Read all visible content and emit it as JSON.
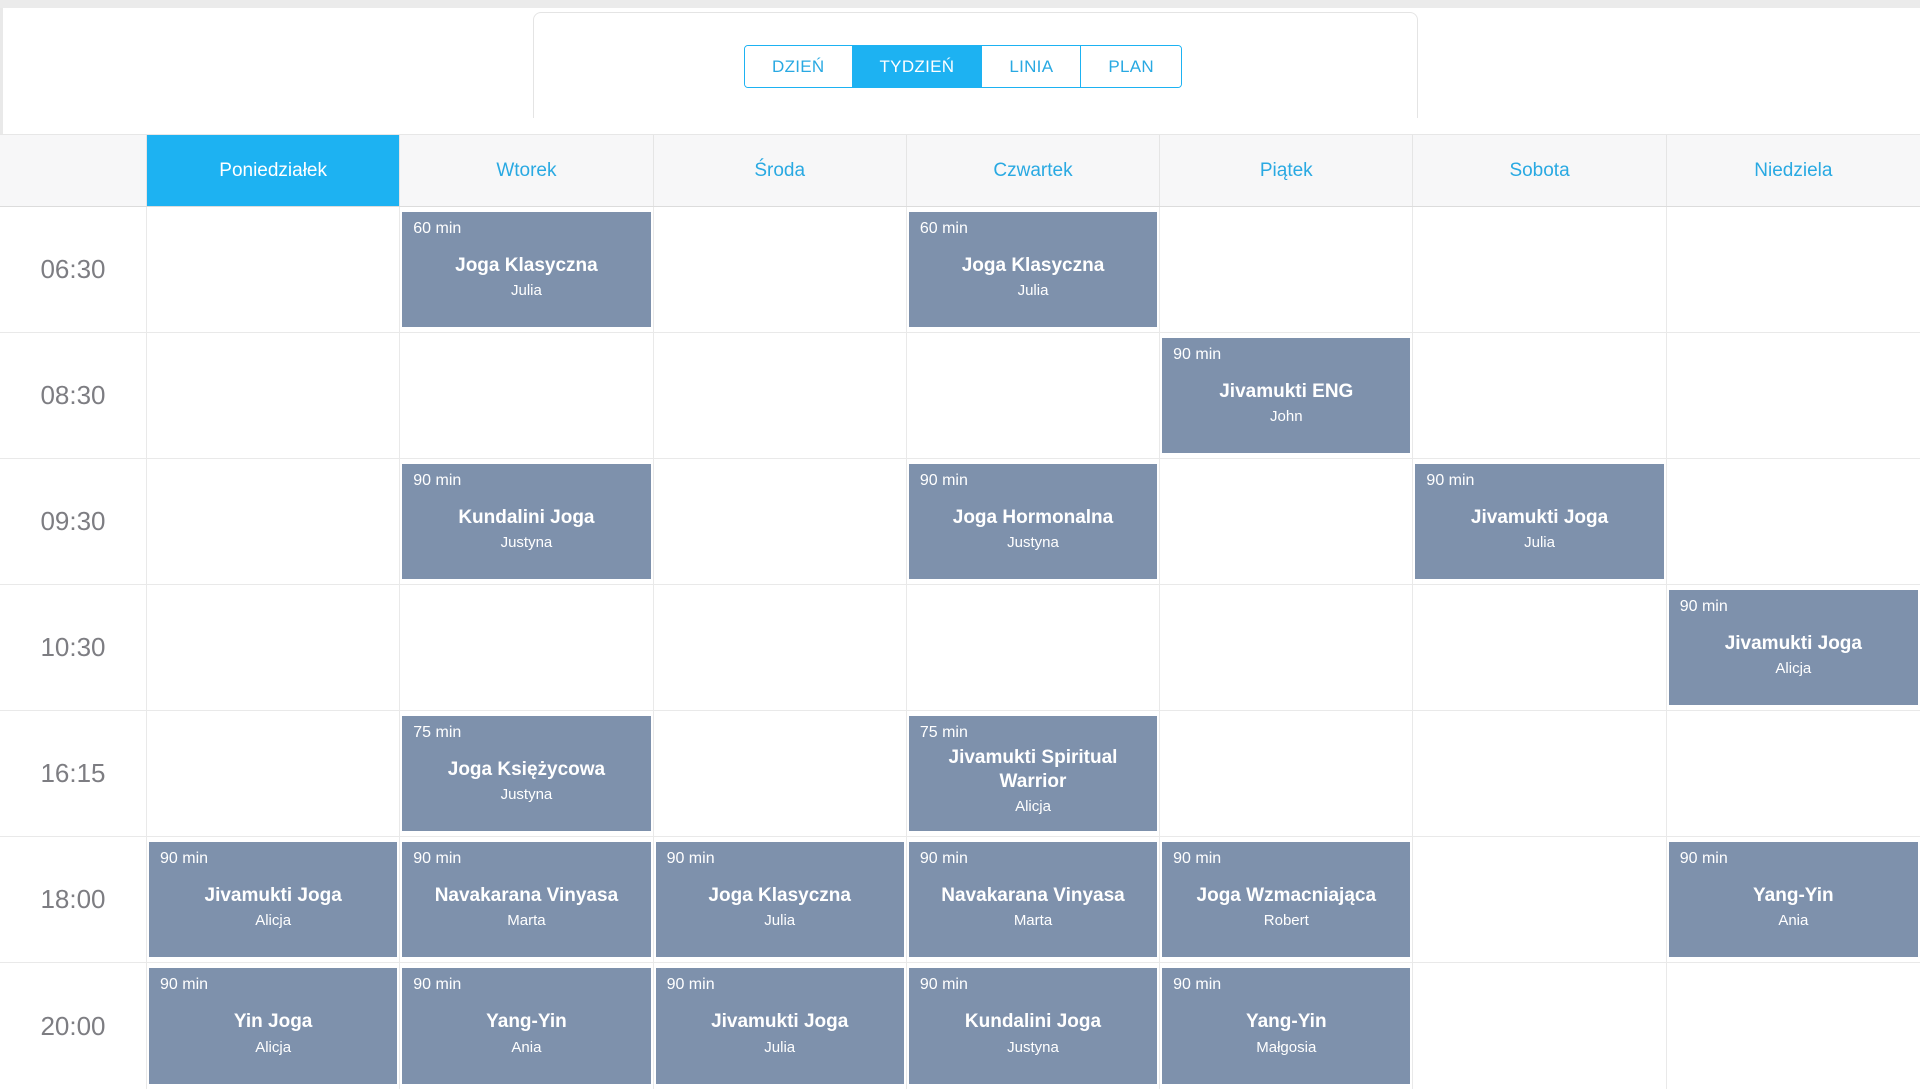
{
  "colors": {
    "accent_blue": "#1db2f2",
    "text_blue": "#29a9e2",
    "event_bg": "#7e91ac",
    "time_text": "#7d7d82",
    "header_bg": "#f7f7f8",
    "grid_line": "#e9e9e9"
  },
  "view_tabs": [
    {
      "key": "dzien",
      "label": "DZIEŃ",
      "active": false
    },
    {
      "key": "tydzien",
      "label": "TYDZIEŃ",
      "active": true
    },
    {
      "key": "linia",
      "label": "LINIA",
      "active": false
    },
    {
      "key": "plan",
      "label": "PLAN",
      "active": false
    }
  ],
  "days": [
    {
      "key": "poniedzialek",
      "label": "Poniedziałek",
      "active": true
    },
    {
      "key": "wtorek",
      "label": "Wtorek",
      "active": false
    },
    {
      "key": "sroda",
      "label": "Środa",
      "active": false
    },
    {
      "key": "czwartek",
      "label": "Czwartek",
      "active": false
    },
    {
      "key": "piatek",
      "label": "Piątek",
      "active": false
    },
    {
      "key": "sobota",
      "label": "Sobota",
      "active": false
    },
    {
      "key": "niedziela",
      "label": "Niedziela",
      "active": false
    }
  ],
  "schedule_rows": [
    {
      "time": "06:30",
      "events": [
        null,
        {
          "duration": "60 min",
          "title": "Joga Klasyczna",
          "instructor": "Julia"
        },
        null,
        {
          "duration": "60 min",
          "title": "Joga Klasyczna",
          "instructor": "Julia"
        },
        null,
        null,
        null
      ]
    },
    {
      "time": "08:30",
      "events": [
        null,
        null,
        null,
        null,
        {
          "duration": "90 min",
          "title": "Jivamukti ENG",
          "instructor": "John"
        },
        null,
        null
      ]
    },
    {
      "time": "09:30",
      "events": [
        null,
        {
          "duration": "90 min",
          "title": "Kundalini Joga",
          "instructor": "Justyna"
        },
        null,
        {
          "duration": "90 min",
          "title": "Joga Hormonalna",
          "instructor": "Justyna"
        },
        null,
        {
          "duration": "90 min",
          "title": "Jivamukti Joga",
          "instructor": "Julia"
        },
        null
      ]
    },
    {
      "time": "10:30",
      "events": [
        null,
        null,
        null,
        null,
        null,
        null,
        {
          "duration": "90 min",
          "title": "Jivamukti Joga",
          "instructor": "Alicja"
        }
      ]
    },
    {
      "time": "16:15",
      "events": [
        null,
        {
          "duration": "75 min",
          "title": "Joga Księżycowa",
          "instructor": "Justyna"
        },
        null,
        {
          "duration": "75 min",
          "title": "Jivamukti Spiritual Warrior",
          "instructor": "Alicja"
        },
        null,
        null,
        null
      ]
    },
    {
      "time": "18:00",
      "events": [
        {
          "duration": "90 min",
          "title": "Jivamukti Joga",
          "instructor": "Alicja"
        },
        {
          "duration": "90 min",
          "title": "Navakarana Vinyasa",
          "instructor": "Marta"
        },
        {
          "duration": "90 min",
          "title": "Joga Klasyczna",
          "instructor": "Julia"
        },
        {
          "duration": "90 min",
          "title": "Navakarana Vinyasa",
          "instructor": "Marta"
        },
        {
          "duration": "90 min",
          "title": "Joga Wzmacniająca",
          "instructor": "Robert"
        },
        null,
        {
          "duration": "90 min",
          "title": "Yang-Yin",
          "instructor": "Ania"
        }
      ]
    },
    {
      "time": "20:00",
      "events": [
        {
          "duration": "90 min",
          "title": "Yin Joga",
          "instructor": "Alicja"
        },
        {
          "duration": "90 min",
          "title": "Yang-Yin",
          "instructor": "Ania"
        },
        {
          "duration": "90 min",
          "title": "Jivamukti Joga",
          "instructor": "Julia"
        },
        {
          "duration": "90 min",
          "title": "Kundalini Joga",
          "instructor": "Justyna"
        },
        {
          "duration": "90 min",
          "title": "Yang-Yin",
          "instructor": "Małgosia"
        },
        null,
        null
      ]
    }
  ]
}
